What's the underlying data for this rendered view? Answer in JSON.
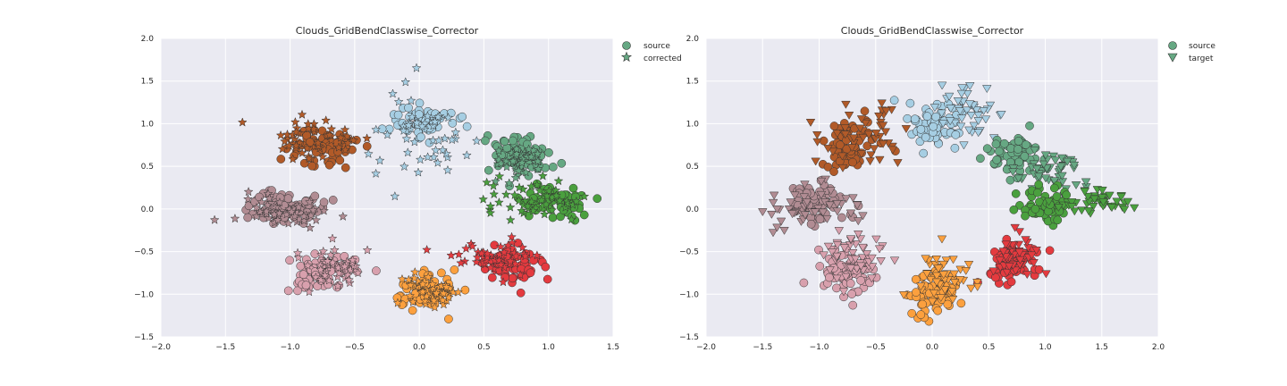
{
  "chart_data": [
    {
      "type": "scatter",
      "title": "Clouds_GridBendClasswise_Corrector",
      "xlabel": "",
      "ylabel": "",
      "xlim": [
        -2.0,
        1.5
      ],
      "ylim": [
        -1.5,
        2.0
      ],
      "xticks": [
        "−2.0",
        "−1.5",
        "−1.0",
        "−0.5",
        "0.0",
        "0.5",
        "1.0",
        "1.5"
      ],
      "xtick_values": [
        -2.0,
        -1.5,
        -1.0,
        -0.5,
        0.0,
        0.5,
        1.0,
        1.5
      ],
      "yticks": [
        "−1.5",
        "−1.0",
        "−0.5",
        "0.0",
        "0.5",
        "1.0",
        "1.5",
        "2.0"
      ],
      "ytick_values": [
        -1.5,
        -1.0,
        -0.5,
        0.0,
        0.5,
        1.0,
        1.5,
        2.0
      ],
      "grid": true,
      "legend_position": "outside-top-right",
      "legend": [
        {
          "label": "source",
          "marker": "circle"
        },
        {
          "label": "corrected",
          "marker": "star"
        }
      ],
      "clusters": [
        {
          "color": "#a6cee3",
          "source": {
            "cx": 0.03,
            "cy": 1.03,
            "sx": 0.12,
            "sy": 0.1,
            "n": 65
          },
          "second": {
            "cx": 0.05,
            "cy": 0.98,
            "sx": 0.2,
            "sy": 0.3,
            "n": 50
          }
        },
        {
          "color": "#66a883",
          "source": {
            "cx": 0.77,
            "cy": 0.64,
            "sx": 0.12,
            "sy": 0.12,
            "n": 65
          },
          "second": {
            "cx": 0.78,
            "cy": 0.55,
            "sx": 0.1,
            "sy": 0.08,
            "n": 50
          }
        },
        {
          "color": "#4aa03e",
          "source": {
            "cx": 1.05,
            "cy": 0.08,
            "sx": 0.12,
            "sy": 0.1,
            "n": 65
          },
          "second": {
            "cx": 0.85,
            "cy": 0.1,
            "sx": 0.2,
            "sy": 0.12,
            "n": 50
          }
        },
        {
          "color": "#e43a3f",
          "source": {
            "cx": 0.7,
            "cy": -0.65,
            "sx": 0.12,
            "sy": 0.1,
            "n": 65
          },
          "second": {
            "cx": 0.58,
            "cy": -0.55,
            "sx": 0.15,
            "sy": 0.1,
            "n": 50
          }
        },
        {
          "color": "#fca03e",
          "source": {
            "cx": 0.05,
            "cy": -0.97,
            "sx": 0.12,
            "sy": 0.1,
            "n": 65
          },
          "second": {
            "cx": 0.08,
            "cy": -0.95,
            "sx": 0.1,
            "sy": 0.1,
            "n": 50
          }
        },
        {
          "color": "#d8a0ad",
          "source": {
            "cx": -0.75,
            "cy": -0.72,
            "sx": 0.13,
            "sy": 0.12,
            "n": 65
          },
          "second": {
            "cx": -0.68,
            "cy": -0.7,
            "sx": 0.15,
            "sy": 0.12,
            "n": 50
          }
        },
        {
          "color": "#b18c93",
          "source": {
            "cx": -1.05,
            "cy": 0.02,
            "sx": 0.13,
            "sy": 0.1,
            "n": 65
          },
          "second": {
            "cx": -1.05,
            "cy": -0.05,
            "sx": 0.2,
            "sy": 0.1,
            "n": 50
          }
        },
        {
          "color": "#b15a28",
          "source": {
            "cx": -0.75,
            "cy": 0.72,
            "sx": 0.12,
            "sy": 0.12,
            "n": 65
          },
          "second": {
            "cx": -0.8,
            "cy": 0.8,
            "sx": 0.2,
            "sy": 0.15,
            "n": 50
          }
        }
      ]
    },
    {
      "type": "scatter",
      "title": "Clouds_GridBendClasswise_Corrector",
      "xlabel": "",
      "ylabel": "",
      "xlim": [
        -2.0,
        2.0
      ],
      "ylim": [
        -1.5,
        2.0
      ],
      "xticks": [
        "−2.0",
        "−1.5",
        "−1.0",
        "−0.5",
        "0.0",
        "0.5",
        "1.0",
        "1.5",
        "2.0"
      ],
      "xtick_values": [
        -2.0,
        -1.5,
        -1.0,
        -0.5,
        0.0,
        0.5,
        1.0,
        1.5,
        2.0
      ],
      "yticks": [
        "−1.5",
        "−1.0",
        "−0.5",
        "0.0",
        "0.5",
        "1.0",
        "1.5",
        "2.0"
      ],
      "ytick_values": [
        -1.5,
        -1.0,
        -0.5,
        0.0,
        0.5,
        1.0,
        1.5,
        2.0
      ],
      "grid": true,
      "legend_position": "outside-top-right",
      "legend": [
        {
          "label": "source",
          "marker": "circle"
        },
        {
          "label": "target",
          "marker": "triangle-down"
        }
      ],
      "clusters": [
        {
          "color": "#a6cee3",
          "source": {
            "cx": 0.0,
            "cy": 1.0,
            "sx": 0.12,
            "sy": 0.12,
            "n": 65
          },
          "second": {
            "cx": 0.35,
            "cy": 1.15,
            "sx": 0.15,
            "sy": 0.15,
            "n": 50
          }
        },
        {
          "color": "#66a883",
          "source": {
            "cx": 0.75,
            "cy": 0.6,
            "sx": 0.12,
            "sy": 0.12,
            "n": 65
          },
          "second": {
            "cx": 1.05,
            "cy": 0.45,
            "sx": 0.15,
            "sy": 0.1,
            "n": 50
          }
        },
        {
          "color": "#4aa03e",
          "source": {
            "cx": 1.0,
            "cy": 0.05,
            "sx": 0.12,
            "sy": 0.1,
            "n": 65
          },
          "second": {
            "cx": 1.4,
            "cy": 0.1,
            "sx": 0.18,
            "sy": 0.06,
            "n": 50
          }
        },
        {
          "color": "#e43a3f",
          "source": {
            "cx": 0.72,
            "cy": -0.62,
            "sx": 0.12,
            "sy": 0.12,
            "n": 65
          },
          "second": {
            "cx": 0.75,
            "cy": -0.55,
            "sx": 0.1,
            "sy": 0.1,
            "n": 50
          }
        },
        {
          "color": "#fca03e",
          "source": {
            "cx": 0.0,
            "cy": -1.0,
            "sx": 0.12,
            "sy": 0.12,
            "n": 65
          },
          "second": {
            "cx": 0.08,
            "cy": -0.8,
            "sx": 0.12,
            "sy": 0.15,
            "n": 50
          }
        },
        {
          "color": "#d8a0ad",
          "source": {
            "cx": -0.78,
            "cy": -0.75,
            "sx": 0.12,
            "sy": 0.12,
            "n": 65
          },
          "second": {
            "cx": -0.7,
            "cy": -0.55,
            "sx": 0.15,
            "sy": 0.15,
            "n": 50
          }
        },
        {
          "color": "#b18c93",
          "source": {
            "cx": -1.0,
            "cy": 0.05,
            "sx": 0.13,
            "sy": 0.12,
            "n": 65
          },
          "second": {
            "cx": -1.05,
            "cy": 0.0,
            "sx": 0.2,
            "sy": 0.12,
            "n": 50
          }
        },
        {
          "color": "#b15a28",
          "source": {
            "cx": -0.75,
            "cy": 0.75,
            "sx": 0.12,
            "sy": 0.12,
            "n": 65
          },
          "second": {
            "cx": -0.6,
            "cy": 0.85,
            "sx": 0.2,
            "sy": 0.15,
            "n": 50
          }
        }
      ]
    }
  ]
}
